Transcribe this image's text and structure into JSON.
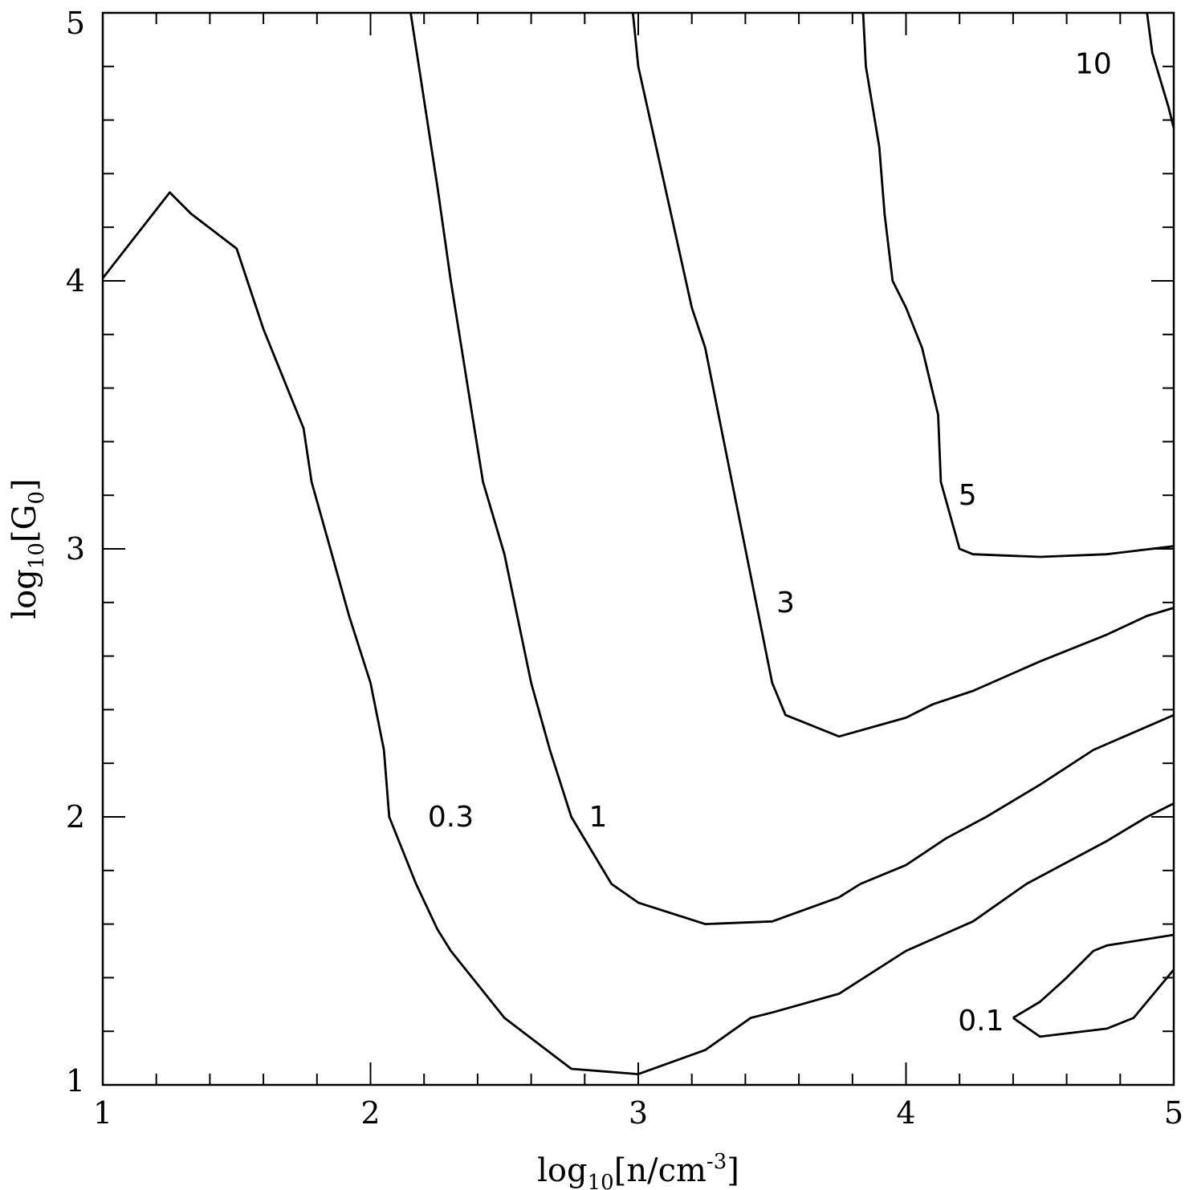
{
  "chart_data": {
    "type": "contour",
    "xlabel": {
      "base": "log",
      "sub": "10",
      "body": "[n/cm",
      "sup": "-3",
      "end": "]"
    },
    "ylabel": {
      "base": "log",
      "sub": "10",
      "body": "[G",
      "sub2": "0",
      "end": "]"
    },
    "xlim": [
      1,
      5
    ],
    "ylim": [
      1,
      5
    ],
    "x_ticks": [
      1,
      2,
      3,
      4,
      5
    ],
    "x_tick_labels": [
      "1",
      "2",
      "3",
      "4",
      "5"
    ],
    "y_ticks": [
      1,
      2,
      3,
      4,
      5
    ],
    "y_tick_labels": [
      "1",
      "2",
      "3",
      "4",
      "5"
    ],
    "grid": false,
    "contours": [
      {
        "level": "0.1",
        "label_at": [
          4.28,
          1.24
        ],
        "segments": [
          [
            [
              4.4,
              1.25
            ],
            [
              4.5,
              1.31
            ],
            [
              4.6,
              1.4
            ],
            [
              4.7,
              1.5
            ],
            [
              4.75,
              1.52
            ],
            [
              5.0,
              1.56
            ]
          ],
          [
            [
              4.4,
              1.25
            ],
            [
              4.5,
              1.18
            ],
            [
              4.75,
              1.21
            ],
            [
              4.85,
              1.25
            ],
            [
              5.0,
              1.43
            ]
          ]
        ]
      },
      {
        "level": "0.3",
        "label_at": [
          2.3,
          2.0
        ],
        "segments": [
          [
            [
              1.0,
              4.01
            ],
            [
              1.25,
              4.33
            ],
            [
              1.33,
              4.25
            ],
            [
              1.5,
              4.12
            ],
            [
              1.6,
              3.82
            ],
            [
              1.75,
              3.45
            ],
            [
              1.78,
              3.25
            ],
            [
              1.85,
              3.0
            ],
            [
              1.92,
              2.75
            ],
            [
              2.0,
              2.5
            ],
            [
              2.05,
              2.25
            ],
            [
              2.07,
              2.0
            ],
            [
              2.17,
              1.75
            ],
            [
              2.25,
              1.58
            ],
            [
              2.3,
              1.5
            ],
            [
              2.5,
              1.25
            ],
            [
              2.75,
              1.06
            ],
            [
              3.0,
              1.04
            ],
            [
              3.25,
              1.13
            ],
            [
              3.42,
              1.25
            ],
            [
              3.5,
              1.27
            ],
            [
              3.75,
              1.34
            ],
            [
              4.0,
              1.5
            ],
            [
              4.25,
              1.61
            ],
            [
              4.45,
              1.75
            ],
            [
              4.75,
              1.91
            ],
            [
              4.9,
              2.0
            ],
            [
              5.0,
              2.05
            ]
          ]
        ]
      },
      {
        "level": "1",
        "label_at": [
          2.85,
          2.0
        ],
        "segments": [
          [
            [
              2.15,
              5.0
            ],
            [
              2.25,
              4.35
            ],
            [
              2.3,
              4.0
            ],
            [
              2.38,
              3.5
            ],
            [
              2.42,
              3.25
            ],
            [
              2.5,
              2.98
            ],
            [
              2.6,
              2.5
            ],
            [
              2.67,
              2.25
            ],
            [
              2.75,
              2.0
            ],
            [
              2.9,
              1.75
            ],
            [
              3.0,
              1.68
            ],
            [
              3.25,
              1.6
            ],
            [
              3.5,
              1.61
            ],
            [
              3.75,
              1.7
            ],
            [
              3.83,
              1.75
            ],
            [
              4.0,
              1.82
            ],
            [
              4.15,
              1.92
            ],
            [
              4.3,
              2.0
            ],
            [
              4.5,
              2.12
            ],
            [
              4.7,
              2.25
            ],
            [
              5.0,
              2.38
            ]
          ]
        ]
      },
      {
        "level": "3",
        "label_at": [
          3.55,
          2.8
        ],
        "segments": [
          [
            [
              2.98,
              5.0
            ],
            [
              3.0,
              4.8
            ],
            [
              3.1,
              4.35
            ],
            [
              3.2,
              3.9
            ],
            [
              3.25,
              3.75
            ],
            [
              3.3,
              3.5
            ],
            [
              3.35,
              3.25
            ],
            [
              3.4,
              3.0
            ],
            [
              3.45,
              2.75
            ],
            [
              3.5,
              2.5
            ],
            [
              3.55,
              2.38
            ],
            [
              3.75,
              2.3
            ],
            [
              4.0,
              2.37
            ],
            [
              4.1,
              2.42
            ],
            [
              4.25,
              2.47
            ],
            [
              4.5,
              2.58
            ],
            [
              4.75,
              2.68
            ],
            [
              4.9,
              2.75
            ],
            [
              5.0,
              2.78
            ]
          ]
        ]
      },
      {
        "level": "5",
        "label_at": [
          4.23,
          3.2
        ],
        "segments": [
          [
            [
              3.84,
              5.0
            ],
            [
              3.85,
              4.8
            ],
            [
              3.9,
              4.5
            ],
            [
              3.92,
              4.25
            ],
            [
              3.95,
              4.0
            ],
            [
              4.0,
              3.9
            ],
            [
              4.06,
              3.75
            ],
            [
              4.12,
              3.5
            ],
            [
              4.13,
              3.25
            ],
            [
              4.2,
              3.0
            ],
            [
              4.25,
              2.98
            ],
            [
              4.5,
              2.97
            ],
            [
              4.75,
              2.98
            ],
            [
              5.0,
              3.01
            ]
          ]
        ]
      },
      {
        "level": "10",
        "label_at": [
          4.7,
          4.81
        ],
        "segments": [
          [
            [
              4.9,
              5.0
            ],
            [
              4.92,
              4.85
            ],
            [
              4.95,
              4.75
            ],
            [
              4.98,
              4.65
            ],
            [
              5.0,
              4.57
            ]
          ]
        ]
      }
    ]
  }
}
